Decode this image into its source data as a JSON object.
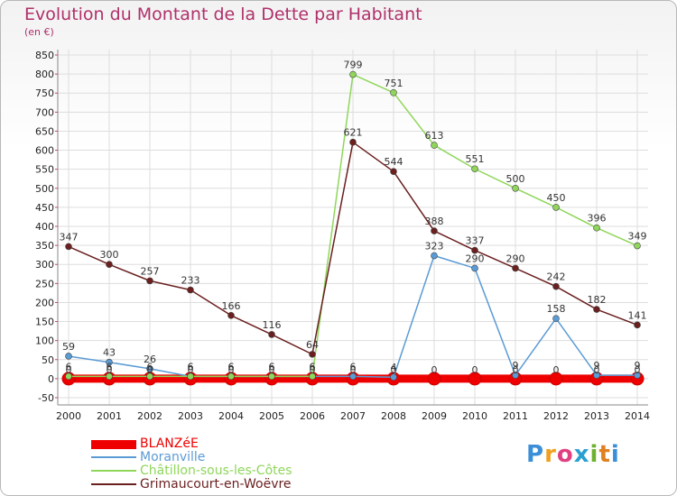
{
  "header": {
    "title": "Evolution du Montant de la Dette par Habitant",
    "subtitle": "(en €)"
  },
  "logo": {
    "text": "Proxiti"
  },
  "colors": {
    "title": "#b0306a",
    "grid": "#dddddd",
    "logo_letters": [
      "#3b8fd8",
      "#f0a020",
      "#e04080",
      "#2aa0d0",
      "#70b030",
      "#e08020",
      "#3b8fd8"
    ]
  },
  "chart_data": {
    "type": "line",
    "title": "Evolution du Montant de la Dette par Habitant",
    "subtitle": "(en €)",
    "xlabel": "",
    "ylabel": "",
    "ylim": [
      -50,
      850
    ],
    "ytick_step": 50,
    "grid": true,
    "legend_position": "bottom-left",
    "x": [
      "2000",
      "2001",
      "2002",
      "2003",
      "2004",
      "2005",
      "2006",
      "2007",
      "2008",
      "2009",
      "2010",
      "2011",
      "2012",
      "2013",
      "2014"
    ],
    "series": [
      {
        "name": "BLANZéE",
        "color": "#ee0000",
        "values": [
          0,
          0,
          0,
          0,
          0,
          0,
          0,
          0,
          0,
          0,
          0,
          0,
          0,
          0,
          0
        ],
        "labels": [
          "0",
          "0",
          "0",
          "0",
          "0",
          "0",
          "0",
          "0",
          "0",
          "0",
          "0",
          "0",
          "0",
          "0",
          "0"
        ]
      },
      {
        "name": "Moranville",
        "color": "#5b9bd5",
        "values": [
          59,
          43,
          26,
          6,
          6,
          6,
          6,
          6,
          4,
          323,
          290,
          9,
          158,
          9,
          9
        ],
        "labels": [
          "59",
          "43",
          "26",
          "6",
          "6",
          "6",
          "6",
          "6",
          "4",
          "323",
          "290",
          "9",
          "158",
          "9",
          "9"
        ]
      },
      {
        "name": "Châtillon-sous-les-Côtes",
        "color": "#8fd65a",
        "values": [
          6,
          6,
          6,
          6,
          6,
          6,
          6,
          799,
          751,
          613,
          551,
          500,
          450,
          396,
          349
        ],
        "labels": [
          "6",
          "6",
          "6",
          "6",
          "6",
          "6",
          "6",
          "799",
          "751",
          "613",
          "551",
          "500",
          "450",
          "396",
          "349"
        ]
      },
      {
        "name": "Grimaucourt-en-Woëvre",
        "color": "#6b1f1f",
        "values": [
          347,
          300,
          257,
          233,
          166,
          116,
          64,
          621,
          544,
          388,
          337,
          290,
          242,
          182,
          141
        ],
        "labels": [
          "347",
          "300",
          "257",
          "233",
          "166",
          "116",
          "64",
          "621",
          "544",
          "388",
          "337",
          "290",
          "242",
          "182",
          "141"
        ]
      }
    ]
  }
}
